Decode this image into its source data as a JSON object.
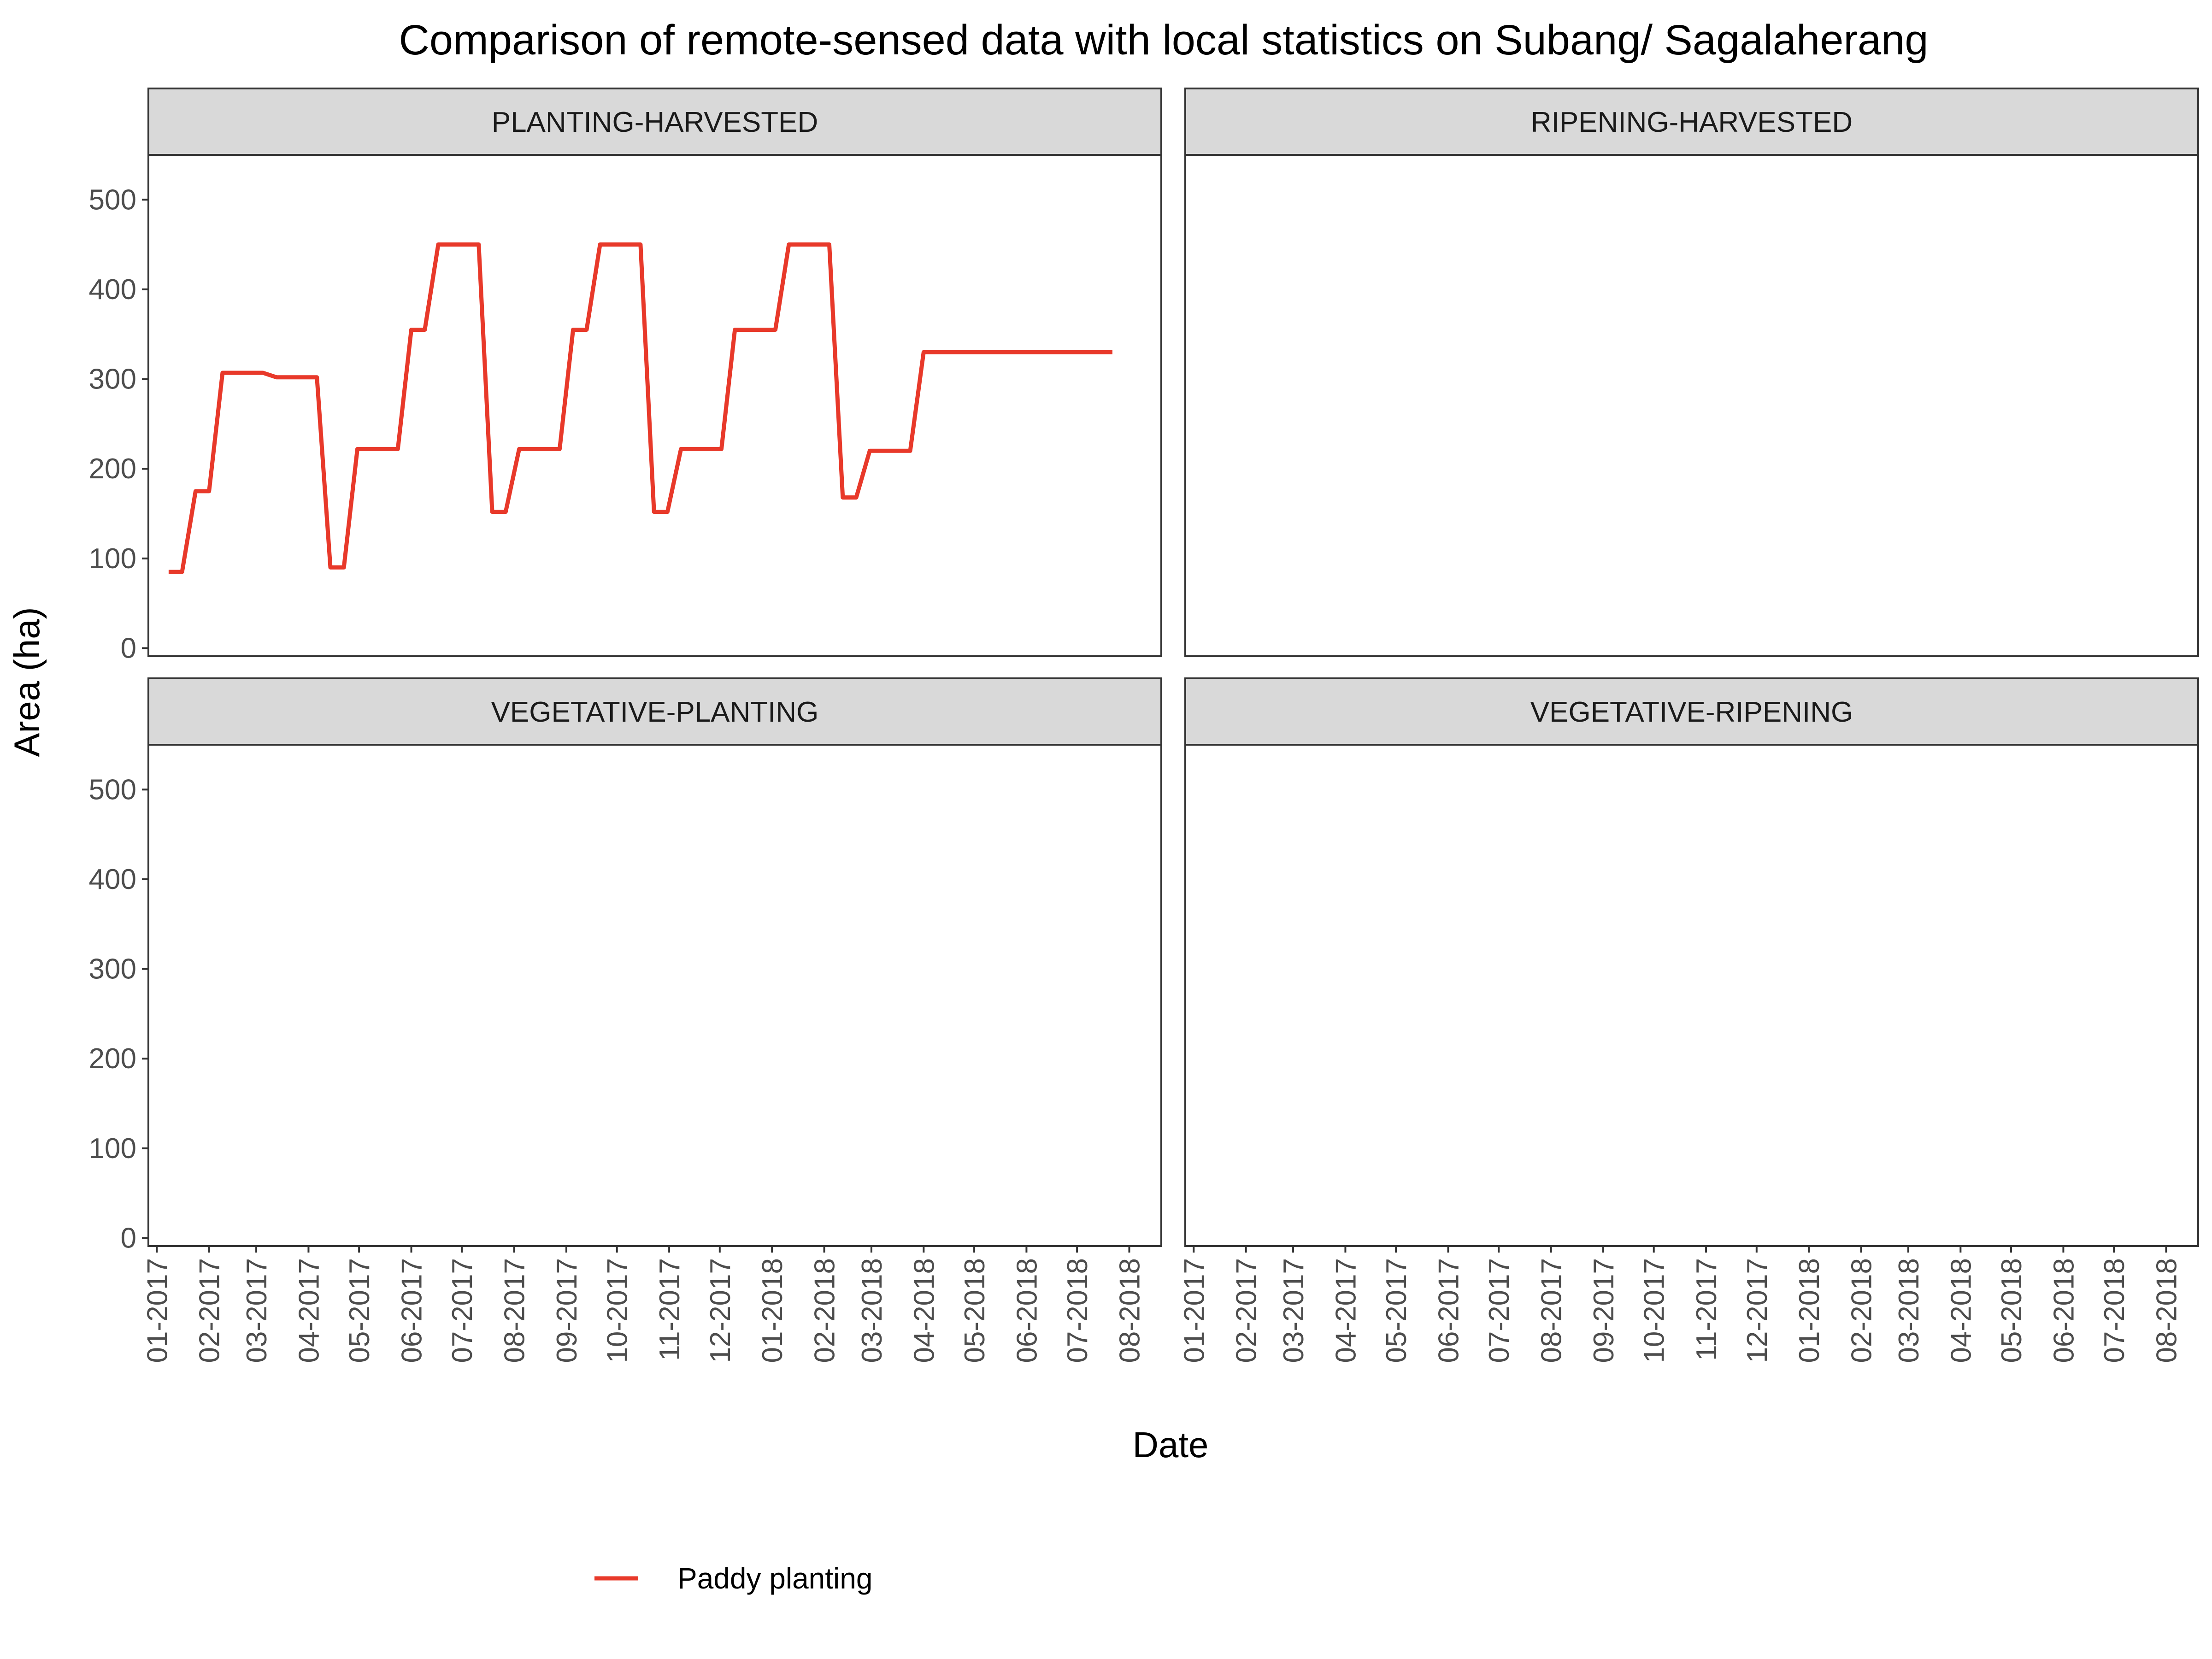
{
  "chart_data": {
    "type": "line",
    "title": "Comparison of remote-sensed data with local statistics on Subang/ Sagalaherang",
    "xlabel": "Date",
    "ylabel": "Area (ha)",
    "ylim": [
      0,
      550
    ],
    "y_ticks": [
      0,
      100,
      200,
      300,
      400,
      500
    ],
    "x_tick_labels": [
      "01-2017",
      "02-2017",
      "03-2017",
      "04-2017",
      "05-2017",
      "06-2017",
      "07-2017",
      "08-2017",
      "09-2017",
      "10-2017",
      "11-2017",
      "12-2017",
      "01-2018",
      "02-2018",
      "03-2018",
      "04-2018",
      "05-2018",
      "06-2018",
      "07-2018",
      "08-2018"
    ],
    "grid": false,
    "legend_position": "bottom",
    "series": [
      {
        "name": "Paddy planting",
        "color": "#e8392a",
        "x": [
          "2017-01-08",
          "2017-01-16",
          "2017-01-24",
          "2017-02-01",
          "2017-02-09",
          "2017-02-17",
          "2017-02-25",
          "2017-03-05",
          "2017-03-13",
          "2017-03-21",
          "2017-03-29",
          "2017-04-06",
          "2017-04-14",
          "2017-04-22",
          "2017-04-30",
          "2017-05-08",
          "2017-05-16",
          "2017-05-24",
          "2017-06-01",
          "2017-06-09",
          "2017-06-17",
          "2017-06-25",
          "2017-07-03",
          "2017-07-11",
          "2017-07-19",
          "2017-07-27",
          "2017-08-04",
          "2017-08-12",
          "2017-08-20",
          "2017-08-28",
          "2017-09-05",
          "2017-09-13",
          "2017-09-21",
          "2017-09-29",
          "2017-10-07",
          "2017-10-15",
          "2017-10-23",
          "2017-10-31",
          "2017-11-08",
          "2017-11-16",
          "2017-11-24",
          "2017-12-02",
          "2017-12-10",
          "2017-12-18",
          "2017-12-26",
          "2018-01-03",
          "2018-01-11",
          "2018-01-19",
          "2018-01-27",
          "2018-02-04",
          "2018-02-12",
          "2018-02-20",
          "2018-02-28",
          "2018-03-08",
          "2018-03-16",
          "2018-03-24",
          "2018-04-01",
          "2018-04-09",
          "2018-04-17",
          "2018-04-25",
          "2018-05-03",
          "2018-05-11",
          "2018-05-19",
          "2018-05-27",
          "2018-06-04",
          "2018-06-12",
          "2018-06-20",
          "2018-06-28",
          "2018-07-06",
          "2018-07-14",
          "2018-07-22"
        ],
        "values": [
          85,
          85,
          175,
          175,
          307,
          307,
          307,
          307,
          302,
          302,
          302,
          302,
          90,
          90,
          222,
          222,
          222,
          222,
          355,
          355,
          450,
          450,
          450,
          450,
          152,
          152,
          222,
          222,
          222,
          222,
          355,
          355,
          450,
          450,
          450,
          450,
          152,
          152,
          222,
          222,
          222,
          222,
          355,
          355,
          355,
          355,
          450,
          450,
          450,
          450,
          168,
          168,
          220,
          220,
          220,
          220,
          330,
          330,
          330,
          330,
          330,
          330,
          330,
          330,
          330,
          330,
          330,
          330,
          330,
          330,
          330
        ]
      }
    ],
    "panels": [
      {
        "title": "PLANTING-HARVESTED",
        "series": [
          {
            "name": "Paddy planting",
            "color": "#e8392a",
            "x": [
              "2017-01-08",
              "2017-01-16",
              "2017-01-24",
              "2017-02-01",
              "2017-02-09",
              "2017-02-17",
              "2017-02-25",
              "2017-03-05",
              "2017-03-13",
              "2017-03-21",
              "2017-03-29",
              "2017-04-06",
              "2017-04-14",
              "2017-04-22",
              "2017-04-30",
              "2017-05-08",
              "2017-05-16",
              "2017-05-24",
              "2017-06-01",
              "2017-06-09",
              "2017-06-17",
              "2017-06-25",
              "2017-07-03",
              "2017-07-11",
              "2017-07-19",
              "2017-07-27",
              "2017-08-04",
              "2017-08-12",
              "2017-08-20",
              "2017-08-28",
              "2017-09-05",
              "2017-09-13",
              "2017-09-21",
              "2017-09-29",
              "2017-10-07",
              "2017-10-15",
              "2017-10-23",
              "2017-10-31",
              "2017-11-08",
              "2017-11-16",
              "2017-11-24",
              "2017-12-02",
              "2017-12-10",
              "2017-12-18",
              "2017-12-26",
              "2018-01-03",
              "2018-01-11",
              "2018-01-19",
              "2018-01-27",
              "2018-02-04",
              "2018-02-12",
              "2018-02-20",
              "2018-02-28",
              "2018-03-08",
              "2018-03-16",
              "2018-03-24",
              "2018-04-01",
              "2018-04-09",
              "2018-04-17",
              "2018-04-25",
              "2018-05-03",
              "2018-05-11",
              "2018-05-19",
              "2018-05-27",
              "2018-06-04",
              "2018-06-12",
              "2018-06-20",
              "2018-06-28",
              "2018-07-06",
              "2018-07-14",
              "2018-07-22"
            ],
            "values": [
              85,
              85,
              175,
              175,
              307,
              307,
              307,
              307,
              302,
              302,
              302,
              302,
              90,
              90,
              222,
              222,
              222,
              222,
              355,
              355,
              450,
              450,
              450,
              450,
              152,
              152,
              222,
              222,
              222,
              222,
              355,
              355,
              450,
              450,
              450,
              450,
              152,
              152,
              222,
              222,
              222,
              222,
              355,
              355,
              355,
              355,
              450,
              450,
              450,
              450,
              168,
              168,
              220,
              220,
              220,
              220,
              330,
              330,
              330,
              330,
              330,
              330,
              330,
              330,
              330,
              330,
              330,
              330,
              330,
              330,
              330
            ]
          }
        ]
      },
      {
        "title": "RIPENING-HARVESTED",
        "series": []
      },
      {
        "title": "VEGETATIVE-PLANTING",
        "series": []
      },
      {
        "title": "VEGETATIVE-RIPENING",
        "series": []
      }
    ]
  }
}
